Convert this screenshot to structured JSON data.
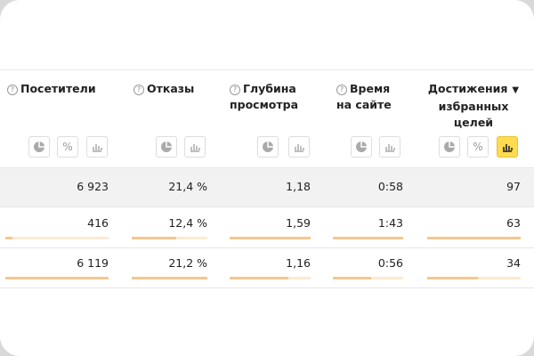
{
  "help_icon": "?",
  "sort_indicator": "▼",
  "percent_label": "%",
  "columns": [
    {
      "lines": [
        "Посетители"
      ],
      "help": true
    },
    {
      "lines": [
        "Отказы"
      ],
      "help": true
    },
    {
      "lines": [
        "Глубина",
        "просмотра"
      ],
      "help": true
    },
    {
      "lines": [
        "Время",
        "на сайте"
      ],
      "help": true
    },
    {
      "lines": [
        "Достижения",
        "избранных",
        "целей"
      ],
      "help": false,
      "sorted": true
    }
  ],
  "rows": [
    [
      "6 923",
      "21,4 %",
      "1,18",
      "0:58",
      "97"
    ],
    [
      "416",
      "12,4 %",
      "1,59",
      "1:43",
      "63"
    ],
    [
      "6 119",
      "21,2 %",
      "1,16",
      "0:56",
      "34"
    ]
  ]
}
